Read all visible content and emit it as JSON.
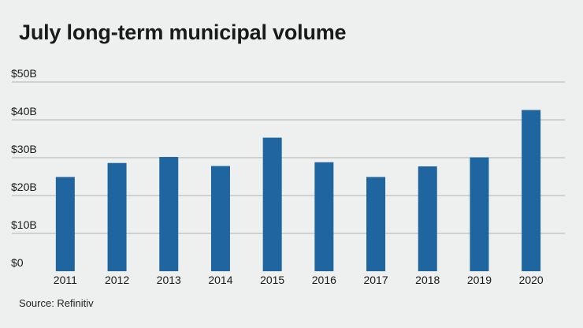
{
  "chart_data": {
    "type": "bar",
    "title": "July long-term municipal volume",
    "categories": [
      "2011",
      "2012",
      "2013",
      "2014",
      "2015",
      "2016",
      "2017",
      "2018",
      "2019",
      "2020"
    ],
    "values": [
      24.9,
      28.6,
      30.2,
      27.8,
      35.3,
      28.8,
      24.9,
      27.7,
      30.1,
      42.6
    ],
    "value_unit": "billions of dollars",
    "ylim": [
      0,
      50
    ],
    "yticks": [
      0,
      10,
      20,
      30,
      40,
      50
    ],
    "ytick_labels": [
      "$0",
      "$10B",
      "$20B",
      "$30B",
      "$40B",
      "$50B"
    ],
    "xlabel": "",
    "ylabel": "",
    "grid": "horizontal",
    "colors": {
      "bar": "#1f66a0",
      "grid": "#b0b3b2",
      "background": "#eef0ef"
    }
  },
  "footer": {
    "source": "Source: Refinitiv"
  }
}
